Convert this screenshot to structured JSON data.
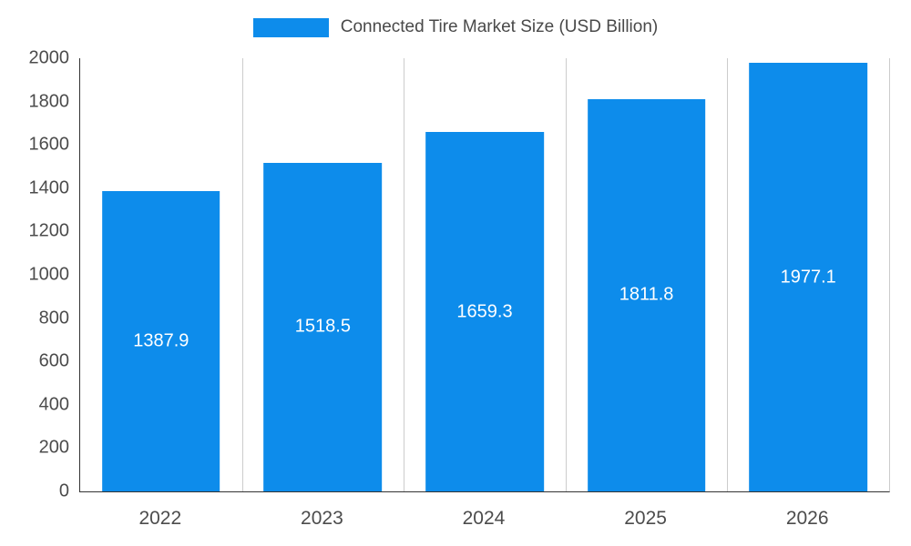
{
  "chart_data": {
    "type": "bar",
    "title": "Connected Tire Market Size (USD Billion)",
    "categories": [
      "2022",
      "2023",
      "2024",
      "2025",
      "2026"
    ],
    "values": [
      1387.9,
      1518.5,
      1659.3,
      1811.8,
      1977.1
    ],
    "value_labels": [
      "1387.9",
      "1518.5",
      "1659.3",
      "1811.8",
      "1977.1"
    ],
    "yticks": [
      "0",
      "200",
      "400",
      "600",
      "800",
      "1000",
      "1200",
      "1400",
      "1600",
      "1800",
      "2000"
    ],
    "ylim": [
      0,
      2000
    ],
    "ytick_step": 200,
    "xlabel": "",
    "ylabel": "",
    "legend_position": "top",
    "grid": "vertical-category-boundaries",
    "colors": {
      "bar": "#0d8ceb",
      "bar_value_text": "#ffffff",
      "axis_text": "#4c4c4c",
      "gridline": "#cccccc",
      "baseline": "#333333"
    }
  }
}
